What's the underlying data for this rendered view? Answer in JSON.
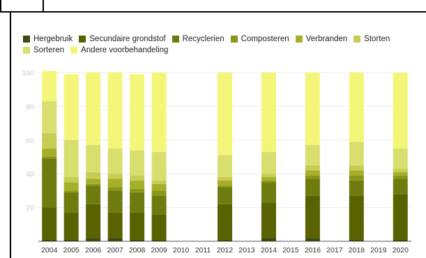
{
  "chart_data": {
    "type": "bar",
    "stacked": true,
    "categories": [
      "2004",
      "2005",
      "2006",
      "2007",
      "2008",
      "2009",
      "2010",
      "2011",
      "2012",
      "2013",
      "2014",
      "2015",
      "2016",
      "2017",
      "2018",
      "2019",
      "2020"
    ],
    "ylim": [
      0,
      100
    ],
    "yticks": [
      20,
      40,
      60,
      80,
      100
    ],
    "grid": true,
    "legend_position": "top-left",
    "series": [
      {
        "name": "Hergebruik",
        "color": "#3b4a0e",
        "values": [
          1,
          1,
          2,
          2,
          1,
          1,
          null,
          null,
          1,
          null,
          2,
          null,
          2,
          null,
          1,
          null,
          1
        ]
      },
      {
        "name": "Secundaire grondstof",
        "color": "#586300",
        "values": [
          19,
          16,
          20,
          15,
          16,
          15,
          null,
          null,
          21,
          null,
          21,
          null,
          25,
          null,
          26,
          null,
          27
        ]
      },
      {
        "name": "Recyclerien",
        "color": "#6e7b0f",
        "values": [
          29,
          12,
          11,
          13,
          12,
          11,
          null,
          null,
          10,
          null,
          12,
          null,
          10,
          null,
          9,
          null,
          9
        ]
      },
      {
        "name": "Composteren",
        "color": "#8a9619",
        "values": [
          1,
          1,
          1,
          2,
          2,
          3,
          null,
          null,
          1,
          null,
          1,
          null,
          2,
          null,
          3,
          null,
          2
        ]
      },
      {
        "name": "Verbranden",
        "color": "#a5b028",
        "values": [
          5,
          5,
          3,
          5,
          5,
          4,
          null,
          null,
          3,
          null,
          2,
          null,
          3,
          null,
          3,
          null,
          2
        ]
      },
      {
        "name": "Storten",
        "color": "#c7cc55",
        "values": [
          9,
          3,
          4,
          3,
          3,
          2,
          null,
          null,
          2,
          null,
          2,
          null,
          3,
          null,
          3,
          null,
          2
        ]
      },
      {
        "name": "Sorteren",
        "color": "#d9df6e",
        "values": [
          19,
          22,
          16,
          15,
          15,
          17,
          null,
          null,
          13,
          null,
          13,
          null,
          12,
          null,
          14,
          null,
          12
        ]
      },
      {
        "name": "Andere voorbehandeling",
        "color": "#f4f67a",
        "values": [
          18,
          39,
          43,
          45,
          45,
          47,
          null,
          null,
          49,
          null,
          47,
          null,
          43,
          null,
          41,
          null,
          45
        ]
      }
    ]
  }
}
